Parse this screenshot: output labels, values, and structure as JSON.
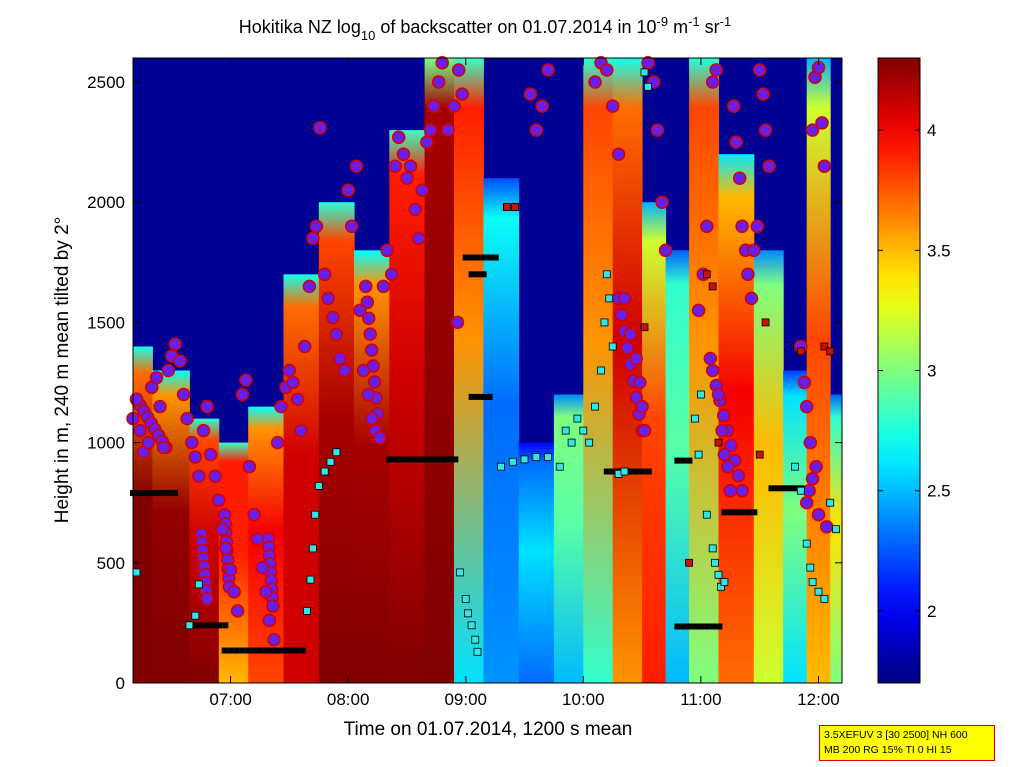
{
  "chart_data": {
    "type": "heatmap",
    "title": {
      "prefix": "Hokitika NZ log",
      "log_base": "10",
      "middle": " of backscatter on 01.07.2014 in 10",
      "exp1": "-9",
      "unit1": " m",
      "exp2": "-1",
      "unit2": " sr",
      "exp3": "-1"
    },
    "xlabel": "Time on 01.07.2014, 1200 s mean",
    "ylabel": "Height in m, 240 m mean tilted by 2°",
    "x_ticks": [
      "07:00",
      "08:00",
      "09:00",
      "10:00",
      "11:00",
      "12:00"
    ],
    "x_tick_hours": [
      7,
      8,
      9,
      10,
      11,
      12
    ],
    "xlim": [
      6.17,
      12.2
    ],
    "y_ticks": [
      0,
      500,
      1000,
      1500,
      2000,
      2500
    ],
    "ylim": [
      0,
      2600
    ],
    "colorbar": {
      "ticks": [
        2,
        2.5,
        3,
        3.5,
        4
      ],
      "tick_labels": [
        "2",
        "2.5",
        "3",
        "3.5",
        "4"
      ],
      "range": [
        1.7,
        4.3
      ],
      "colormap": "jet"
    },
    "columns": [
      {
        "t": 6.17,
        "bottom": 4.3,
        "mid": 4.3,
        "top_h": 1400,
        "top": 3.7
      },
      {
        "t": 6.5,
        "bottom": 4.3,
        "mid": 4.25,
        "top_h": 1300,
        "top": 3.6
      },
      {
        "t": 6.8,
        "bottom": 4.3,
        "mid": 4.1,
        "top_h": 1100,
        "top": 3.8
      },
      {
        "t": 7.0,
        "bottom": 3.5,
        "mid": 3.9,
        "top_h": 1000,
        "top": 3.9
      },
      {
        "t": 7.3,
        "bottom": 3.8,
        "mid": 4.0,
        "top_h": 1150,
        "top": 3.6
      },
      {
        "t": 7.6,
        "bottom": 4.1,
        "mid": 4.1,
        "top_h": 1700,
        "top": 3.7
      },
      {
        "t": 7.9,
        "bottom": 4.3,
        "mid": 4.2,
        "top_h": 2000,
        "top": 3.8
      },
      {
        "t": 8.2,
        "bottom": 4.3,
        "mid": 4.2,
        "top_h": 1800,
        "top": 3.6
      },
      {
        "t": 8.5,
        "bottom": 4.3,
        "mid": 4.1,
        "top_h": 2300,
        "top": 3.9
      },
      {
        "t": 8.8,
        "bottom": 4.3,
        "mid": 4.25,
        "top_h": 2600,
        "top": 4.2
      },
      {
        "t": 9.0,
        "bottom": 2.6,
        "mid": 3.6,
        "top_h": 2600,
        "top": 3.9
      },
      {
        "t": 9.3,
        "bottom": 2.4,
        "mid": 2.3,
        "top_h": 2100,
        "top": 2.7
      },
      {
        "t": 9.6,
        "bottom": 2.3,
        "mid": 2.6,
        "top_h": 1000,
        "top": 2.3
      },
      {
        "t": 9.9,
        "bottom": 2.5,
        "mid": 2.9,
        "top_h": 1200,
        "top": 3.0
      },
      {
        "t": 10.1,
        "bottom": 2.8,
        "mid": 3.6,
        "top_h": 2600,
        "top": 3.8
      },
      {
        "t": 10.4,
        "bottom": 3.6,
        "mid": 4.1,
        "top_h": 2600,
        "top": 3.7
      },
      {
        "t": 10.6,
        "bottom": 3.9,
        "mid": 3.8,
        "top_h": 2000,
        "top": 3.2
      },
      {
        "t": 10.8,
        "bottom": 2.5,
        "mid": 2.9,
        "top_h": 1800,
        "top": 2.8
      },
      {
        "t": 11.0,
        "bottom": 3.0,
        "mid": 3.6,
        "top_h": 2600,
        "top": 3.8
      },
      {
        "t": 11.3,
        "bottom": 3.7,
        "mid": 4.0,
        "top_h": 2200,
        "top": 3.5
      },
      {
        "t": 11.6,
        "bottom": 3.2,
        "mid": 3.5,
        "top_h": 1800,
        "top": 3.0
      },
      {
        "t": 11.8,
        "bottom": 2.6,
        "mid": 3.0,
        "top_h": 1300,
        "top": 2.6
      },
      {
        "t": 12.0,
        "bottom": 3.5,
        "mid": 3.8,
        "top_h": 2600,
        "top": 3.2
      },
      {
        "t": 12.2,
        "bottom": 3.0,
        "mid": 3.4,
        "top_h": 1200,
        "top": 2.8
      }
    ],
    "background_value": 1.75,
    "cloud_points": [
      [
        6.17,
        1100
      ],
      [
        6.2,
        1180
      ],
      [
        6.23,
        1050
      ],
      [
        6.26,
        960
      ],
      [
        6.3,
        1000
      ],
      [
        6.33,
        1230
      ],
      [
        6.37,
        1270
      ],
      [
        6.4,
        1150
      ],
      [
        6.43,
        980
      ],
      [
        6.47,
        1300
      ],
      [
        6.5,
        1360
      ],
      [
        6.53,
        1410
      ],
      [
        6.57,
        1340
      ],
      [
        6.6,
        1200
      ],
      [
        6.63,
        1100
      ],
      [
        6.67,
        1000
      ],
      [
        6.7,
        940
      ],
      [
        6.73,
        860
      ],
      [
        6.77,
        1050
      ],
      [
        6.8,
        1150
      ],
      [
        6.83,
        950
      ],
      [
        6.87,
        860
      ],
      [
        6.9,
        760
      ],
      [
        6.93,
        640
      ],
      [
        6.96,
        560
      ],
      [
        7.0,
        470
      ],
      [
        7.03,
        380
      ],
      [
        7.06,
        300
      ],
      [
        7.1,
        1200
      ],
      [
        7.13,
        1260
      ],
      [
        7.16,
        900
      ],
      [
        7.2,
        700
      ],
      [
        7.23,
        600
      ],
      [
        7.27,
        480
      ],
      [
        7.3,
        380
      ],
      [
        7.33,
        260
      ],
      [
        7.37,
        180
      ],
      [
        7.4,
        1000
      ],
      [
        7.43,
        1150
      ],
      [
        7.47,
        1230
      ],
      [
        7.5,
        1300
      ],
      [
        7.53,
        1250
      ],
      [
        7.57,
        1180
      ],
      [
        7.6,
        1050
      ],
      [
        7.63,
        1400
      ],
      [
        7.67,
        1650
      ],
      [
        7.7,
        1850
      ],
      [
        7.73,
        1900
      ],
      [
        7.76,
        2310
      ],
      [
        7.8,
        1700
      ],
      [
        7.83,
        1600
      ],
      [
        7.87,
        1520
      ],
      [
        7.9,
        1450
      ],
      [
        7.93,
        1350
      ],
      [
        7.97,
        1300
      ],
      [
        8.0,
        2050
      ],
      [
        8.03,
        1900
      ],
      [
        8.07,
        2150
      ],
      [
        8.1,
        1550
      ],
      [
        8.13,
        1300
      ],
      [
        8.17,
        1200
      ],
      [
        8.2,
        1100
      ],
      [
        8.23,
        1050
      ],
      [
        8.27,
        1020
      ],
      [
        8.3,
        1650
      ],
      [
        8.33,
        1800
      ],
      [
        8.37,
        1700
      ],
      [
        8.4,
        2150
      ],
      [
        8.43,
        2270
      ],
      [
        8.47,
        2200
      ],
      [
        8.5,
        2100
      ],
      [
        8.53,
        2150
      ],
      [
        8.57,
        1970
      ],
      [
        8.6,
        1850
      ],
      [
        8.63,
        2050
      ],
      [
        8.67,
        2250
      ],
      [
        8.7,
        2300
      ],
      [
        8.73,
        2400
      ],
      [
        8.77,
        2500
      ],
      [
        8.8,
        2580
      ],
      [
        8.85,
        2300
      ],
      [
        8.9,
        2400
      ],
      [
        8.94,
        2550
      ],
      [
        8.97,
        2450
      ],
      [
        8.93,
        1500
      ],
      [
        9.55,
        2450
      ],
      [
        9.6,
        2300
      ],
      [
        9.65,
        2400
      ],
      [
        9.7,
        2550
      ],
      [
        10.1,
        2500
      ],
      [
        10.15,
        2580
      ],
      [
        10.2,
        2550
      ],
      [
        10.25,
        2400
      ],
      [
        10.3,
        2200
      ],
      [
        10.35,
        1600
      ],
      [
        10.4,
        1450
      ],
      [
        10.45,
        1350
      ],
      [
        10.48,
        1250
      ],
      [
        10.5,
        1150
      ],
      [
        10.52,
        1050
      ],
      [
        10.55,
        2580
      ],
      [
        10.6,
        2500
      ],
      [
        10.63,
        2300
      ],
      [
        10.67,
        2000
      ],
      [
        10.7,
        1800
      ],
      [
        10.98,
        1550
      ],
      [
        11.02,
        1700
      ],
      [
        11.05,
        1900
      ],
      [
        11.08,
        1350
      ],
      [
        11.1,
        2500
      ],
      [
        11.13,
        2550
      ],
      [
        11.15,
        1200
      ],
      [
        11.18,
        1050
      ],
      [
        11.2,
        950
      ],
      [
        11.23,
        900
      ],
      [
        11.25,
        800
      ],
      [
        11.28,
        2400
      ],
      [
        11.3,
        2250
      ],
      [
        11.33,
        2100
      ],
      [
        11.35,
        1900
      ],
      [
        11.38,
        1800
      ],
      [
        11.4,
        1700
      ],
      [
        11.43,
        1600
      ],
      [
        11.45,
        1800
      ],
      [
        11.48,
        1900
      ],
      [
        11.5,
        2550
      ],
      [
        11.53,
        2450
      ],
      [
        11.55,
        2300
      ],
      [
        11.58,
        2150
      ],
      [
        11.85,
        1400
      ],
      [
        11.88,
        1250
      ],
      [
        11.9,
        1150
      ],
      [
        11.93,
        1000
      ],
      [
        11.95,
        2300
      ],
      [
        11.97,
        2520
      ],
      [
        12.0,
        2560
      ],
      [
        12.03,
        2330
      ],
      [
        12.05,
        2150
      ],
      [
        11.98,
        900
      ],
      [
        11.95,
        850
      ],
      [
        11.92,
        800
      ],
      [
        11.9,
        750
      ],
      [
        12.0,
        700
      ],
      [
        12.07,
        650
      ]
    ],
    "cloud_segments": [
      {
        "start": [
          6.75,
          620
        ],
        "end": [
          6.8,
          350
        ]
      },
      {
        "start": [
          6.95,
          700
        ],
        "end": [
          6.99,
          400
        ]
      },
      {
        "start": [
          7.32,
          600
        ],
        "end": [
          7.36,
          320
        ]
      },
      {
        "start": [
          6.2,
          1180
        ],
        "end": [
          6.45,
          980
        ]
      },
      {
        "start": [
          8.15,
          1650
        ],
        "end": [
          8.25,
          1120
        ]
      },
      {
        "start": [
          10.3,
          1600
        ],
        "end": [
          10.5,
          1050
        ]
      },
      {
        "start": [
          11.1,
          1300
        ],
        "end": [
          11.35,
          800
        ]
      }
    ],
    "base_layers": [
      {
        "x0": 6.17,
        "x1": 6.55,
        "h": 790
      },
      {
        "x0": 6.7,
        "x1": 7.0,
        "h": 240
      },
      {
        "x0": 6.95,
        "x1": 7.65,
        "h": 135
      },
      {
        "x0": 8.35,
        "x1": 8.95,
        "h": 930
      },
      {
        "x0": 9.05,
        "x1": 9.25,
        "h": 1190
      },
      {
        "x0": 9.0,
        "x1": 9.3,
        "h": 1770
      },
      {
        "x0": 9.05,
        "x1": 9.2,
        "h": 1700
      },
      {
        "x0": 10.2,
        "x1": 10.6,
        "h": 880
      },
      {
        "x0": 10.8,
        "x1": 11.2,
        "h": 235
      },
      {
        "x0": 11.2,
        "x1": 11.5,
        "h": 710
      },
      {
        "x0": 11.6,
        "x1": 11.9,
        "h": 810
      },
      {
        "x0": 10.8,
        "x1": 10.95,
        "h": 925
      }
    ],
    "aerosol_points": [
      [
        6.2,
        460
      ],
      [
        6.7,
        280
      ],
      [
        6.73,
        410
      ],
      [
        6.65,
        240
      ],
      [
        7.65,
        300
      ],
      [
        7.68,
        430
      ],
      [
        7.7,
        560
      ],
      [
        7.72,
        700
      ],
      [
        7.75,
        820
      ],
      [
        7.8,
        880
      ],
      [
        7.85,
        920
      ],
      [
        7.9,
        960
      ],
      [
        8.95,
        460
      ],
      [
        9.0,
        350
      ],
      [
        9.02,
        290
      ],
      [
        9.05,
        240
      ],
      [
        9.08,
        180
      ],
      [
        9.1,
        130
      ],
      [
        9.3,
        900
      ],
      [
        9.4,
        920
      ],
      [
        9.5,
        930
      ],
      [
        9.6,
        940
      ],
      [
        9.7,
        940
      ],
      [
        9.8,
        900
      ],
      [
        9.85,
        1050
      ],
      [
        9.9,
        1000
      ],
      [
        9.95,
        1100
      ],
      [
        10.0,
        1050
      ],
      [
        10.05,
        1000
      ],
      [
        10.1,
        1150
      ],
      [
        10.15,
        1300
      ],
      [
        10.18,
        1500
      ],
      [
        10.2,
        1700
      ],
      [
        10.22,
        1600
      ],
      [
        10.25,
        1400
      ],
      [
        10.3,
        870
      ],
      [
        10.35,
        880
      ],
      [
        10.95,
        1100
      ],
      [
        10.98,
        950
      ],
      [
        11.0,
        1200
      ],
      [
        11.05,
        700
      ],
      [
        11.1,
        560
      ],
      [
        11.12,
        500
      ],
      [
        11.15,
        450
      ],
      [
        11.17,
        400
      ],
      [
        11.2,
        420
      ],
      [
        11.8,
        900
      ],
      [
        11.85,
        800
      ],
      [
        11.9,
        580
      ],
      [
        11.93,
        480
      ],
      [
        11.95,
        420
      ],
      [
        12.0,
        380
      ],
      [
        12.05,
        350
      ],
      [
        12.1,
        750
      ],
      [
        12.15,
        640
      ],
      [
        10.52,
        2540
      ],
      [
        10.55,
        2480
      ]
    ],
    "aerosol_red_points": [
      [
        9.35,
        1980
      ],
      [
        9.42,
        1980
      ],
      [
        10.52,
        1480
      ],
      [
        11.05,
        1700
      ],
      [
        11.1,
        1650
      ],
      [
        11.15,
        1000
      ],
      [
        11.5,
        950
      ],
      [
        11.85,
        1380
      ],
      [
        12.05,
        1400
      ],
      [
        12.1,
        1380
      ],
      [
        10.9,
        500
      ],
      [
        11.55,
        1500
      ]
    ]
  },
  "info_box": {
    "line1": "3.5XEFUV 3 [30 2500] NH 600",
    "line2": "MB 200 RG 15% TI 0 HI 15"
  },
  "colors": {
    "cloud_fill": "#6a1fe8",
    "cloud_edge": "#d40000",
    "base_layer": "#000000",
    "aerosol": "#33e6e6",
    "aerosol_red": "#cc1100",
    "info_bg": "#ffff00",
    "info_border": "#d40000"
  }
}
